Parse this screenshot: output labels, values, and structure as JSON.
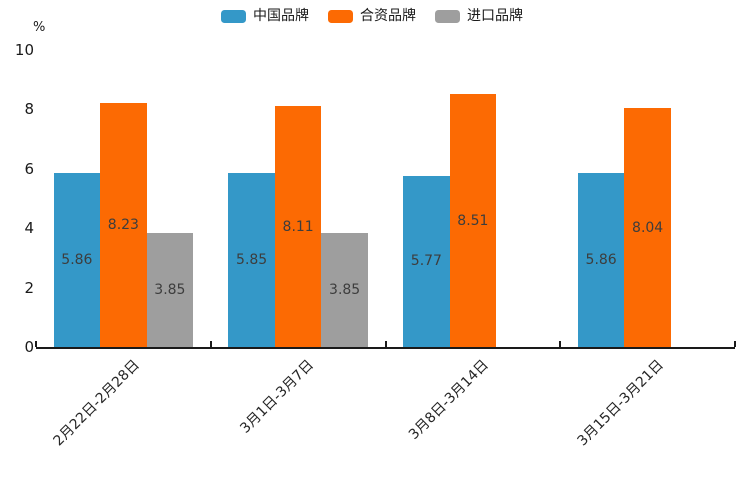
{
  "chart_data": {
    "type": "bar",
    "ylabel": "%",
    "ylim": [
      0,
      10
    ],
    "yticks": [
      0,
      2,
      4,
      6,
      8,
      10
    ],
    "categories": [
      "2月22日-2月28日",
      "3月1日-3月7日",
      "3月8日-3月14日",
      "3月15日-3月21日"
    ],
    "series": [
      {
        "name": "中国品牌",
        "color": "#3498C8",
        "values": [
          5.86,
          5.85,
          5.77,
          5.86
        ]
      },
      {
        "name": "合资品牌",
        "color": "#FC6A03",
        "values": [
          8.23,
          8.11,
          8.51,
          8.04
        ]
      },
      {
        "name": "进口品牌",
        "color": "#9E9E9E",
        "values": [
          3.85,
          3.85,
          null,
          null
        ]
      }
    ],
    "legend_position": "top-center",
    "grid": false,
    "bar_value_labels": "inside-center",
    "axis_color": "#1a1a1a"
  }
}
